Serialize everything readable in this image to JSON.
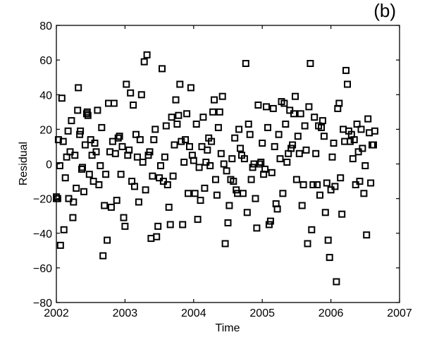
{
  "panel_label": "(b)",
  "chart_data": {
    "type": "scatter",
    "xlabel": "Time",
    "ylabel": "Residual",
    "xlim": [
      2002,
      2007
    ],
    "ylim": [
      -80,
      80
    ],
    "xticks": [
      2002,
      2003,
      2004,
      2005,
      2006,
      2007
    ],
    "yticks": [
      -80,
      -60,
      -40,
      -20,
      0,
      20,
      40,
      60,
      80
    ],
    "xtick_labels": [
      "2002",
      "2003",
      "2004",
      "2005",
      "2006",
      "2007"
    ],
    "ytick_labels": [
      "−80",
      "−60",
      "−40",
      "−20",
      "0",
      "20",
      "40",
      "60",
      "80"
    ],
    "grid": false,
    "marker": "square",
    "series": [
      {
        "points": [
          [
            2002.0,
            -19
          ],
          [
            2002.0,
            -20
          ],
          [
            2002.02,
            -20
          ],
          [
            2002.03,
            14
          ],
          [
            2002.05,
            -1
          ],
          [
            2002.06,
            -47
          ],
          [
            2002.08,
            38
          ],
          [
            2002.1,
            13
          ],
          [
            2002.11,
            -38
          ],
          [
            2002.13,
            -8
          ],
          [
            2002.15,
            4
          ],
          [
            2002.17,
            19
          ],
          [
            2002.18,
            -20
          ],
          [
            2002.2,
            7
          ],
          [
            2002.22,
            25
          ],
          [
            2002.24,
            -31
          ],
          [
            2002.25,
            -22
          ],
          [
            2002.27,
            5
          ],
          [
            2002.29,
            -14
          ],
          [
            2002.31,
            31
          ],
          [
            2002.32,
            44
          ],
          [
            2002.34,
            17
          ],
          [
            2002.35,
            19
          ],
          [
            2002.37,
            -3
          ],
          [
            2002.38,
            -2
          ],
          [
            2002.4,
            -16
          ],
          [
            2002.42,
            11
          ],
          [
            2002.44,
            29
          ],
          [
            2002.45,
            30
          ],
          [
            2002.46,
            28
          ],
          [
            2002.48,
            -6
          ],
          [
            2002.5,
            14
          ],
          [
            2002.52,
            5
          ],
          [
            2002.54,
            -10
          ],
          [
            2002.56,
            12
          ],
          [
            2002.58,
            7
          ],
          [
            2002.6,
            31
          ],
          [
            2002.62,
            -12
          ],
          [
            2002.64,
            -1
          ],
          [
            2002.66,
            21
          ],
          [
            2002.68,
            -53
          ],
          [
            2002.7,
            -24
          ],
          [
            2002.72,
            -6
          ],
          [
            2002.74,
            -44
          ],
          [
            2002.76,
            35
          ],
          [
            2002.78,
            7
          ],
          [
            2002.8,
            -25
          ],
          [
            2002.82,
            13
          ],
          [
            2002.84,
            35
          ],
          [
            2002.86,
            6
          ],
          [
            2002.88,
            -21
          ],
          [
            2002.9,
            15
          ],
          [
            2002.92,
            16
          ],
          [
            2002.94,
            -6
          ],
          [
            2002.96,
            10
          ],
          [
            2002.98,
            -31
          ],
          [
            2003.0,
            -36
          ],
          [
            2003.02,
            46
          ],
          [
            2003.04,
            5
          ],
          [
            2003.06,
            8
          ],
          [
            2003.08,
            41
          ],
          [
            2003.1,
            -10
          ],
          [
            2003.12,
            34
          ],
          [
            2003.14,
            -13
          ],
          [
            2003.16,
            17
          ],
          [
            2003.18,
            4
          ],
          [
            2003.2,
            -22
          ],
          [
            2003.22,
            14
          ],
          [
            2003.24,
            40
          ],
          [
            2003.26,
            1
          ],
          [
            2003.28,
            59
          ],
          [
            2003.3,
            -15
          ],
          [
            2003.32,
            63
          ],
          [
            2003.34,
            5
          ],
          [
            2003.36,
            7
          ],
          [
            2003.38,
            -43
          ],
          [
            2003.4,
            -7
          ],
          [
            2003.42,
            14
          ],
          [
            2003.44,
            20
          ],
          [
            2003.46,
            -42
          ],
          [
            2003.48,
            -36
          ],
          [
            2003.5,
            -8
          ],
          [
            2003.52,
            -1
          ],
          [
            2003.54,
            55
          ],
          [
            2003.56,
            -10
          ],
          [
            2003.58,
            4
          ],
          [
            2003.6,
            22
          ],
          [
            2003.62,
            -12
          ],
          [
            2003.64,
            -25
          ],
          [
            2003.66,
            -35
          ],
          [
            2003.68,
            27
          ],
          [
            2003.7,
            -7
          ],
          [
            2003.72,
            11
          ],
          [
            2003.74,
            37
          ],
          [
            2003.76,
            23
          ],
          [
            2003.78,
            28
          ],
          [
            2003.8,
            46
          ],
          [
            2003.82,
            13
          ],
          [
            2003.84,
            -35
          ],
          [
            2003.86,
            1
          ],
          [
            2003.88,
            14
          ],
          [
            2003.9,
            29
          ],
          [
            2003.92,
            -17
          ],
          [
            2003.94,
            10
          ],
          [
            2003.96,
            44
          ],
          [
            2003.98,
            5
          ],
          [
            2004.0,
            2
          ],
          [
            2004.02,
            -17
          ],
          [
            2004.04,
            23
          ],
          [
            2004.06,
            -32
          ],
          [
            2004.08,
            -2
          ],
          [
            2004.1,
            -21
          ],
          [
            2004.12,
            10
          ],
          [
            2004.14,
            27
          ],
          [
            2004.16,
            -14
          ],
          [
            2004.18,
            1
          ],
          [
            2004.2,
            8
          ],
          [
            2004.22,
            15
          ],
          [
            2004.24,
            -1
          ],
          [
            2004.26,
            13
          ],
          [
            2004.28,
            30
          ],
          [
            2004.3,
            37
          ],
          [
            2004.32,
            -9
          ],
          [
            2004.34,
            -18
          ],
          [
            2004.36,
            21
          ],
          [
            2004.38,
            30
          ],
          [
            2004.4,
            6
          ],
          [
            2004.42,
            39
          ],
          [
            2004.44,
            0
          ],
          [
            2004.46,
            -46
          ],
          [
            2004.48,
            -4
          ],
          [
            2004.5,
            -34
          ],
          [
            2004.52,
            -24
          ],
          [
            2004.54,
            -9
          ],
          [
            2004.56,
            3
          ],
          [
            2004.58,
            -10
          ],
          [
            2004.6,
            15
          ],
          [
            2004.62,
            -15
          ],
          [
            2004.64,
            -17
          ],
          [
            2004.66,
            20
          ],
          [
            2004.68,
            9
          ],
          [
            2004.7,
            5
          ],
          [
            2004.72,
            -17
          ],
          [
            2004.74,
            3
          ],
          [
            2004.76,
            58
          ],
          [
            2004.78,
            -28
          ],
          [
            2004.8,
            23
          ],
          [
            2004.82,
            17
          ],
          [
            2004.84,
            -9
          ],
          [
            2004.86,
            -2
          ],
          [
            2004.88,
            0
          ],
          [
            2004.9,
            -20
          ],
          [
            2004.92,
            -37
          ],
          [
            2004.94,
            34
          ],
          [
            2004.96,
            0
          ],
          [
            2004.98,
            1
          ],
          [
            2005.0,
            12
          ],
          [
            2005.02,
            -6
          ],
          [
            2005.04,
            -3
          ],
          [
            2005.06,
            33
          ],
          [
            2005.08,
            21
          ],
          [
            2005.1,
            -35
          ],
          [
            2005.12,
            -33
          ],
          [
            2005.14,
            -5
          ],
          [
            2005.16,
            32
          ],
          [
            2005.18,
            10
          ],
          [
            2005.2,
            -23
          ],
          [
            2005.22,
            -26
          ],
          [
            2005.24,
            17
          ],
          [
            2005.26,
            3
          ],
          [
            2005.28,
            36
          ],
          [
            2005.3,
            -17
          ],
          [
            2005.32,
            35
          ],
          [
            2005.34,
            23
          ],
          [
            2005.36,
            1
          ],
          [
            2005.38,
            6
          ],
          [
            2005.4,
            31
          ],
          [
            2005.42,
            9
          ],
          [
            2005.44,
            11
          ],
          [
            2005.46,
            29
          ],
          [
            2005.48,
            39
          ],
          [
            2005.5,
            -9
          ],
          [
            2005.52,
            16
          ],
          [
            2005.54,
            6
          ],
          [
            2005.56,
            29
          ],
          [
            2005.58,
            -24
          ],
          [
            2005.6,
            -12
          ],
          [
            2005.62,
            22
          ],
          [
            2005.64,
            8
          ],
          [
            2005.66,
            -46
          ],
          [
            2005.68,
            33
          ],
          [
            2005.7,
            58
          ],
          [
            2005.72,
            -38
          ],
          [
            2005.74,
            -12
          ],
          [
            2005.76,
            27
          ],
          [
            2005.78,
            6
          ],
          [
            2005.8,
            -12
          ],
          [
            2005.82,
            22
          ],
          [
            2005.84,
            -18
          ],
          [
            2005.86,
            21
          ],
          [
            2005.88,
            25
          ],
          [
            2005.9,
            16
          ],
          [
            2005.92,
            -28
          ],
          [
            2005.94,
            -11
          ],
          [
            2005.96,
            -44
          ],
          [
            2005.98,
            -54
          ],
          [
            2006.0,
            -15
          ],
          [
            2006.02,
            4
          ],
          [
            2006.04,
            12
          ],
          [
            2006.06,
            -13
          ],
          [
            2006.08,
            -68
          ],
          [
            2006.1,
            32
          ],
          [
            2006.12,
            35
          ],
          [
            2006.14,
            -8
          ],
          [
            2006.16,
            -29
          ],
          [
            2006.18,
            20
          ],
          [
            2006.2,
            13
          ],
          [
            2006.22,
            54
          ],
          [
            2006.24,
            46
          ],
          [
            2006.26,
            19
          ],
          [
            2006.28,
            13
          ],
          [
            2006.3,
            17
          ],
          [
            2006.32,
            3
          ],
          [
            2006.34,
            14
          ],
          [
            2006.36,
            -12
          ],
          [
            2006.38,
            23
          ],
          [
            2006.4,
            7
          ],
          [
            2006.42,
            -10
          ],
          [
            2006.44,
            20
          ],
          [
            2006.46,
            9
          ],
          [
            2006.48,
            -17
          ],
          [
            2006.5,
            -1
          ],
          [
            2006.52,
            -41
          ],
          [
            2006.54,
            26
          ],
          [
            2006.56,
            18
          ],
          [
            2006.58,
            -11
          ],
          [
            2006.6,
            11
          ],
          [
            2006.62,
            11
          ],
          [
            2006.64,
            19
          ]
        ]
      }
    ]
  }
}
